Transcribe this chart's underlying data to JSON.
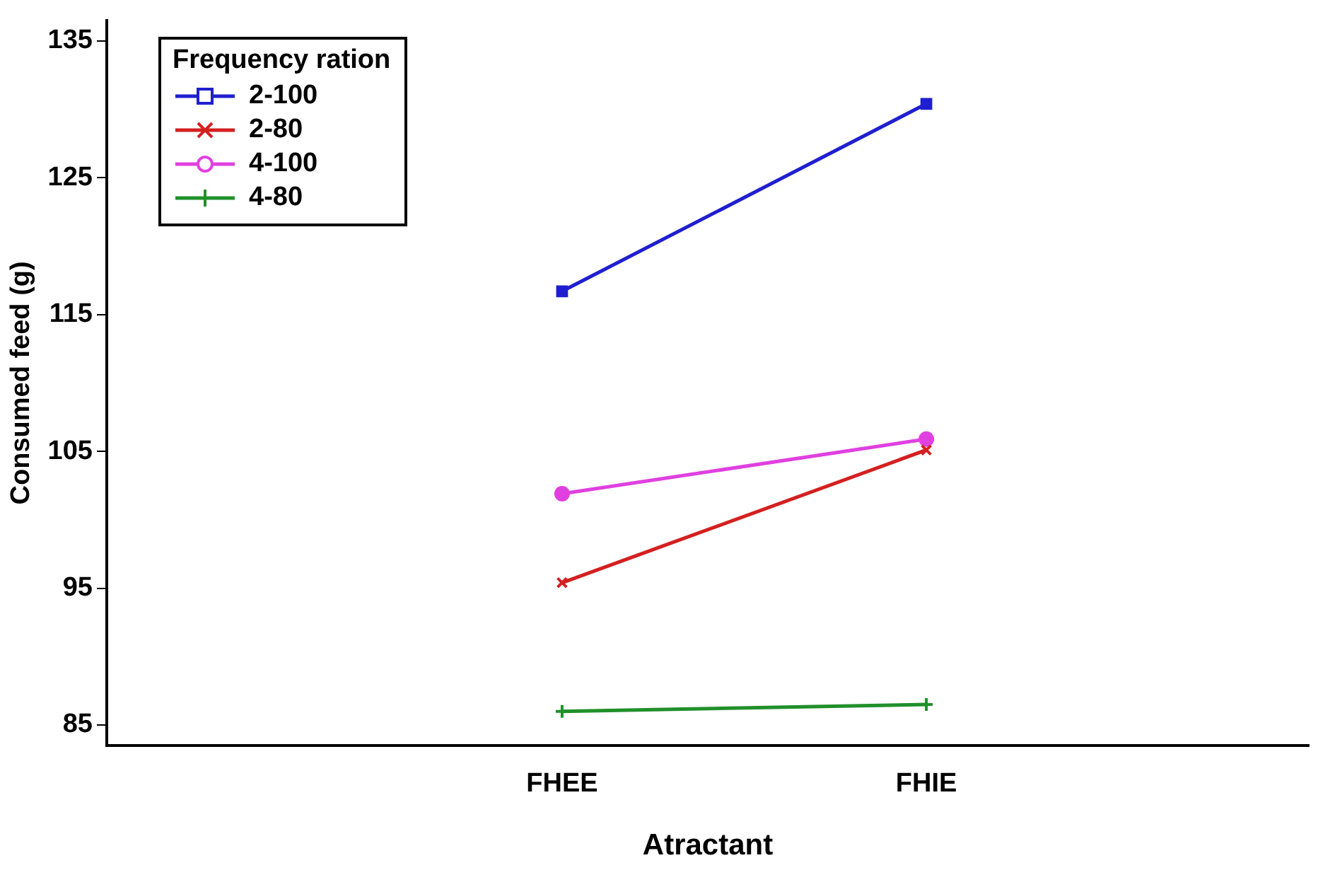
{
  "chart_data": {
    "type": "line",
    "xlabel": "Atractant",
    "ylabel": "Consumed feed (g)",
    "legend_title": "Frequency ration",
    "legend": "top left",
    "grid": false,
    "categories": [
      "FHEE",
      "FHIE"
    ],
    "ylim": [
      83.5,
      136.5
    ],
    "yticks": [
      85,
      95,
      105,
      115,
      125,
      135
    ],
    "series": [
      {
        "name": "2-100",
        "color": "#1f1fd0",
        "marker": "square",
        "values": [
          116.7,
          130.4
        ]
      },
      {
        "name": "2-80",
        "color": "#d42020",
        "marker": "cross",
        "values": [
          95.4,
          105.1
        ]
      },
      {
        "name": "4-100",
        "color": "#e040e0",
        "marker": "circle",
        "values": [
          101.9,
          105.9
        ]
      },
      {
        "name": "4-80",
        "color": "#20902a",
        "marker": "plus",
        "values": [
          86.0,
          86.5
        ]
      }
    ]
  }
}
